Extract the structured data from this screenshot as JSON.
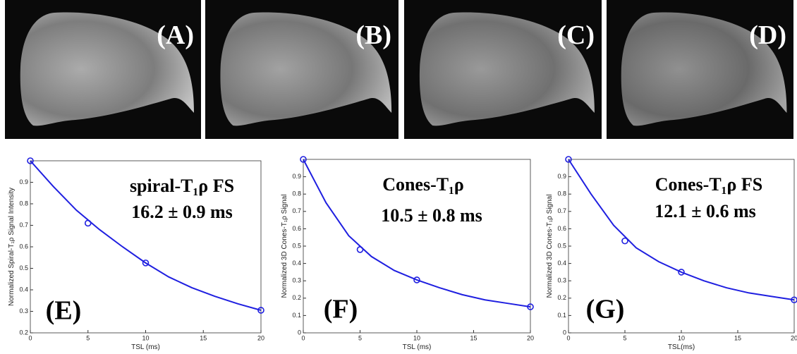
{
  "images": [
    {
      "label": "(A)"
    },
    {
      "label": "(B)"
    },
    {
      "label": "(C)"
    },
    {
      "label": "(D)"
    }
  ],
  "chart_data": [
    {
      "type": "line",
      "xlabel": "TSL (ms)",
      "ylabel": "Normalized Spiral-T₁ρ Signal Intensity",
      "xlim": [
        0,
        20
      ],
      "xticks": [
        0,
        5,
        10,
        15,
        20
      ],
      "ylim": [
        0.2,
        1.0
      ],
      "yticks": [
        0.2,
        0.3,
        0.4,
        0.5,
        0.6,
        0.7,
        0.8,
        0.9
      ],
      "annotations": [
        "spiral-T₁ρ FS",
        "16.2 ± 0.9 ms",
        "(E)"
      ],
      "series": [
        {
          "color": "#1f1fe0",
          "style": "markers",
          "x": [
            0,
            5,
            10,
            20
          ],
          "values": [
            1.0,
            0.71,
            0.525,
            0.305
          ]
        },
        {
          "color": "#1f1fe0",
          "style": "line",
          "x": [
            0,
            2,
            4,
            6,
            8,
            10,
            12,
            14,
            16,
            18,
            20
          ],
          "values": [
            1.0,
            0.88,
            0.77,
            0.68,
            0.6,
            0.525,
            0.46,
            0.41,
            0.37,
            0.335,
            0.305
          ]
        }
      ]
    },
    {
      "type": "line",
      "xlabel": "TSL (ms)",
      "ylabel": "Normalized 3D Cones-T₁ρ Signal",
      "xlim": [
        0,
        20
      ],
      "xticks": [
        0,
        5,
        10,
        15,
        20
      ],
      "ylim": [
        0,
        1.0
      ],
      "yticks": [
        0,
        0.1,
        0.2,
        0.3,
        0.4,
        0.5,
        0.6,
        0.7,
        0.8,
        0.9
      ],
      "annotations": [
        "Cones-T₁ρ",
        "10.5 ± 0.8 ms",
        "(F)"
      ],
      "series": [
        {
          "color": "#1f1fe0",
          "style": "markers",
          "x": [
            0,
            5,
            10,
            20
          ],
          "values": [
            1.0,
            0.48,
            0.305,
            0.15
          ]
        },
        {
          "color": "#1f1fe0",
          "style": "line",
          "x": [
            0,
            2,
            4,
            6,
            8,
            10,
            12,
            14,
            16,
            18,
            20
          ],
          "values": [
            1.0,
            0.75,
            0.56,
            0.44,
            0.36,
            0.305,
            0.26,
            0.22,
            0.19,
            0.17,
            0.15
          ]
        }
      ]
    },
    {
      "type": "line",
      "xlabel": "TSL(ms)",
      "ylabel": "Normalized 3D Cones-T₁ρ Signal",
      "xlim": [
        0,
        20
      ],
      "xticks": [
        0,
        5,
        10,
        15,
        20
      ],
      "ylim": [
        0,
        1.0
      ],
      "yticks": [
        0,
        0.1,
        0.2,
        0.3,
        0.4,
        0.5,
        0.6,
        0.7,
        0.8,
        0.9
      ],
      "annotations": [
        "Cones-T₁ρ FS",
        "12.1 ± 0.6 ms",
        "(G)"
      ],
      "series": [
        {
          "color": "#1f1fe0",
          "style": "markers",
          "x": [
            0,
            5,
            10,
            20
          ],
          "values": [
            1.0,
            0.53,
            0.35,
            0.19
          ]
        },
        {
          "color": "#1f1fe0",
          "style": "line",
          "x": [
            0,
            2,
            4,
            6,
            8,
            10,
            12,
            14,
            16,
            18,
            20
          ],
          "values": [
            1.0,
            0.8,
            0.62,
            0.49,
            0.41,
            0.35,
            0.3,
            0.26,
            0.23,
            0.21,
            0.19
          ]
        }
      ]
    }
  ]
}
